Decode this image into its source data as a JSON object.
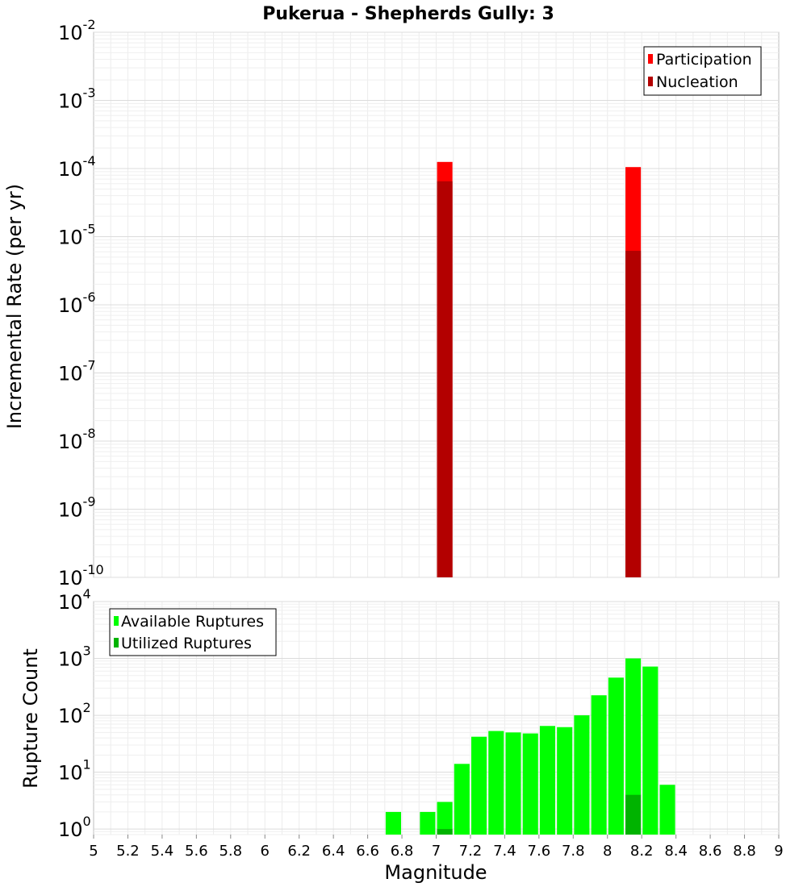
{
  "chart_data": [
    {
      "type": "bar",
      "title": "Pukerua - Shepherds Gully: 3",
      "xlabel": "",
      "ylabel": "Incremental Rate (per yr)",
      "yscale": "log",
      "ylim": [
        1e-10,
        0.01
      ],
      "xlim": [
        5,
        9
      ],
      "ytick_exponents": [
        "-10",
        "-9",
        "-8",
        "-7",
        "-6",
        "-5",
        "-4",
        "-3",
        "-2"
      ],
      "ytick_base": "10",
      "legend_position": "top-right",
      "series": [
        {
          "name": "Participation",
          "color": "#ff0000",
          "points": [
            {
              "x": 7.05,
              "y": 0.000125
            },
            {
              "x": 8.15,
              "y": 0.000105
            }
          ]
        },
        {
          "name": "Nucleation",
          "color": "#b30000",
          "points": [
            {
              "x": 7.05,
              "y": 6.5e-05
            },
            {
              "x": 8.15,
              "y": 6.2e-06
            }
          ]
        }
      ]
    },
    {
      "type": "bar",
      "title": "",
      "xlabel": "Magnitude",
      "ylabel": "Rupture Count",
      "yscale": "log",
      "ylim": [
        0.8,
        10000
      ],
      "xlim": [
        5,
        9
      ],
      "ytick_exponents": [
        "0",
        "1",
        "2",
        "3",
        "4"
      ],
      "ytick_base": "10",
      "xticks": [
        "5",
        "5.2",
        "5.4",
        "5.6",
        "5.8",
        "6",
        "6.2",
        "6.4",
        "6.6",
        "6.8",
        "7",
        "7.2",
        "7.4",
        "7.6",
        "7.8",
        "8",
        "8.2",
        "8.4",
        "8.6",
        "8.8",
        "9"
      ],
      "legend_position": "top-left",
      "series": [
        {
          "name": "Available Ruptures",
          "color": "#00ff00",
          "points": [
            {
              "x": 6.75,
              "y": 2
            },
            {
              "x": 6.95,
              "y": 2
            },
            {
              "x": 7.05,
              "y": 3
            },
            {
              "x": 7.15,
              "y": 14
            },
            {
              "x": 7.25,
              "y": 42
            },
            {
              "x": 7.35,
              "y": 53
            },
            {
              "x": 7.45,
              "y": 50
            },
            {
              "x": 7.55,
              "y": 48
            },
            {
              "x": 7.65,
              "y": 65
            },
            {
              "x": 7.75,
              "y": 62
            },
            {
              "x": 7.85,
              "y": 100
            },
            {
              "x": 7.95,
              "y": 225
            },
            {
              "x": 8.05,
              "y": 460
            },
            {
              "x": 8.15,
              "y": 1000
            },
            {
              "x": 8.25,
              "y": 720
            },
            {
              "x": 8.35,
              "y": 6
            }
          ]
        },
        {
          "name": "Utilized Ruptures",
          "color": "#00b300",
          "points": [
            {
              "x": 7.05,
              "y": 1
            },
            {
              "x": 8.15,
              "y": 4
            }
          ]
        }
      ]
    }
  ]
}
